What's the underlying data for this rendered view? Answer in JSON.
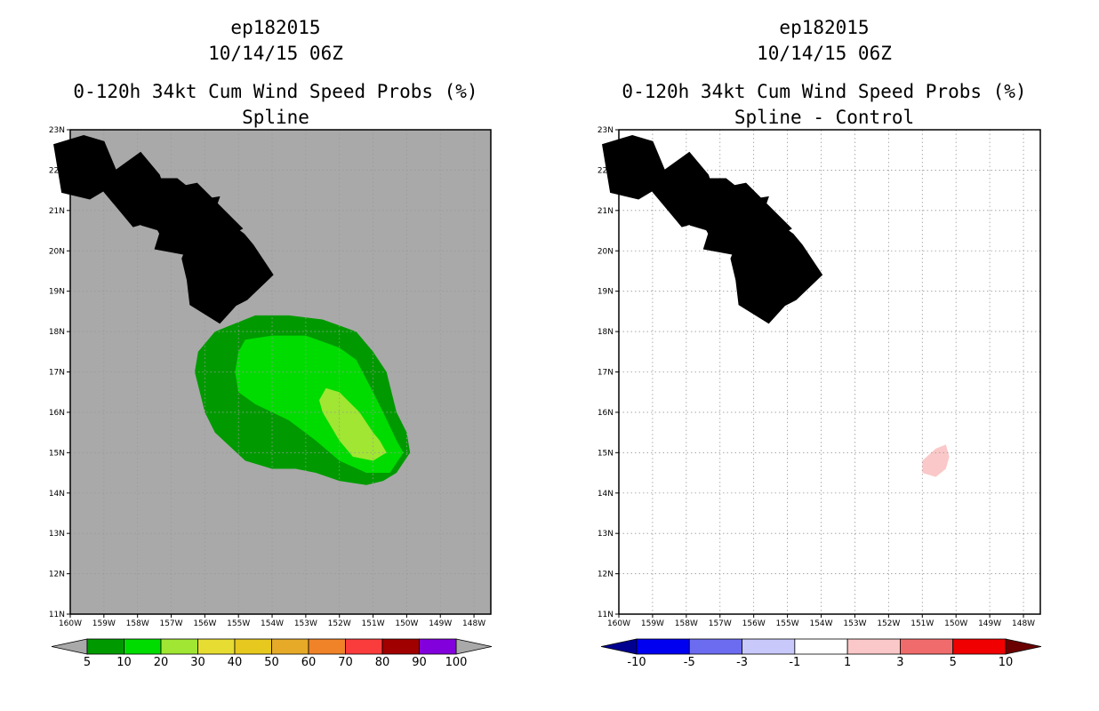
{
  "colors": {
    "background_left": "#a9a9a9",
    "background_right": "#ffffff",
    "grid": "#999999"
  },
  "chart_data": [
    {
      "type": "heatmap",
      "storm_id": "ep182015",
      "date": "10/14/15 06Z",
      "title": "0-120h 34kt Cum Wind Speed Probs (%)",
      "subtitle": "Spline",
      "xlabel": "",
      "ylabel": "",
      "x_ticks": [
        "160W",
        "159W",
        "158W",
        "157W",
        "156W",
        "155W",
        "154W",
        "153W",
        "152W",
        "151W",
        "150W",
        "149W",
        "148W"
      ],
      "y_ticks": [
        "11N",
        "12N",
        "13N",
        "14N",
        "15N",
        "16N",
        "17N",
        "18N",
        "19N",
        "20N",
        "21N",
        "22N",
        "23N"
      ],
      "xlim": [
        -160,
        -147.5
      ],
      "ylim": [
        11,
        23
      ],
      "grid": true,
      "colorbar": {
        "labels": [
          "5",
          "10",
          "20",
          "30",
          "40",
          "50",
          "60",
          "70",
          "80",
          "90",
          "100"
        ],
        "colors": [
          "#009a00",
          "#00dc00",
          "#a0e632",
          "#e6dc32",
          "#e6c81e",
          "#e6aa28",
          "#f08228",
          "#fa3c3c",
          "#a00000",
          "#8200dc"
        ],
        "end_colors": [
          "#a9a9a9",
          "#a9a9a9"
        ]
      },
      "regions": [
        {
          "range": "5-10%",
          "color": "#009a00",
          "lonlat": [
            [
              -155.7,
              18.0
            ],
            [
              -154.5,
              18.4
            ],
            [
              -153.5,
              18.4
            ],
            [
              -152.5,
              18.3
            ],
            [
              -151.5,
              18.0
            ],
            [
              -151.0,
              17.5
            ],
            [
              -150.6,
              17.0
            ],
            [
              -150.3,
              16.0
            ],
            [
              -150.0,
              15.5
            ],
            [
              -149.9,
              15.0
            ],
            [
              -150.3,
              14.5
            ],
            [
              -150.7,
              14.3
            ],
            [
              -151.2,
              14.2
            ],
            [
              -152.0,
              14.3
            ],
            [
              -152.7,
              14.5
            ],
            [
              -153.3,
              14.6
            ],
            [
              -154.0,
              14.6
            ],
            [
              -154.8,
              14.8
            ],
            [
              -155.7,
              15.5
            ],
            [
              -156.0,
              16.0
            ],
            [
              -156.3,
              17.0
            ],
            [
              -156.2,
              17.5
            ]
          ]
        },
        {
          "range": "10-20%",
          "color": "#00dc00",
          "lonlat": [
            [
              -154.8,
              17.8
            ],
            [
              -154.0,
              17.9
            ],
            [
              -153.0,
              17.9
            ],
            [
              -152.0,
              17.6
            ],
            [
              -151.5,
              17.3
            ],
            [
              -151.0,
              16.5
            ],
            [
              -150.7,
              16.0
            ],
            [
              -150.3,
              15.3
            ],
            [
              -150.1,
              15.0
            ],
            [
              -150.5,
              14.5
            ],
            [
              -151.2,
              14.5
            ],
            [
              -152.0,
              14.8
            ],
            [
              -152.7,
              15.3
            ],
            [
              -153.5,
              15.8
            ],
            [
              -154.5,
              16.2
            ],
            [
              -155.0,
              16.5
            ],
            [
              -155.1,
              17.0
            ],
            [
              -155.0,
              17.5
            ]
          ]
        },
        {
          "range": "20-30%",
          "color": "#a0e632",
          "lonlat": [
            [
              -152.4,
              16.6
            ],
            [
              -152.0,
              16.5
            ],
            [
              -151.4,
              16.0
            ],
            [
              -151.0,
              15.5
            ],
            [
              -150.8,
              15.3
            ],
            [
              -150.6,
              15.0
            ],
            [
              -151.0,
              14.8
            ],
            [
              -151.6,
              14.9
            ],
            [
              -152.0,
              15.3
            ],
            [
              -152.5,
              16.0
            ],
            [
              -152.6,
              16.3
            ]
          ]
        }
      ]
    },
    {
      "type": "heatmap",
      "storm_id": "ep182015",
      "date": "10/14/15 06Z",
      "title": "0-120h 34kt Cum Wind Speed Probs (%)",
      "subtitle": "Spline - Control",
      "xlabel": "",
      "ylabel": "",
      "x_ticks": [
        "160W",
        "159W",
        "158W",
        "157W",
        "156W",
        "155W",
        "154W",
        "153W",
        "152W",
        "151W",
        "150W",
        "149W",
        "148W"
      ],
      "y_ticks": [
        "11N",
        "12N",
        "13N",
        "14N",
        "15N",
        "16N",
        "17N",
        "18N",
        "19N",
        "20N",
        "21N",
        "22N",
        "23N"
      ],
      "xlim": [
        -160,
        -147.5
      ],
      "ylim": [
        11,
        23
      ],
      "grid": true,
      "colorbar": {
        "labels": [
          "-10",
          "-5",
          "-3",
          "-1",
          "1",
          "3",
          "5",
          "10"
        ],
        "colors": [
          "#0000f0",
          "#6c6cf0",
          "#c8c8fa",
          "#ffffff",
          "#fac8c8",
          "#f06c6c",
          "#f00000"
        ],
        "end_colors": [
          "#000090",
          "#6a0000"
        ]
      },
      "regions": [
        {
          "range": "1-3",
          "color": "#fac8c8",
          "lonlat": [
            [
              -151.0,
              14.8
            ],
            [
              -150.6,
              15.1
            ],
            [
              -150.3,
              15.2
            ],
            [
              -150.2,
              14.9
            ],
            [
              -150.3,
              14.6
            ],
            [
              -150.6,
              14.4
            ],
            [
              -151.0,
              14.5
            ]
          ]
        }
      ]
    }
  ]
}
